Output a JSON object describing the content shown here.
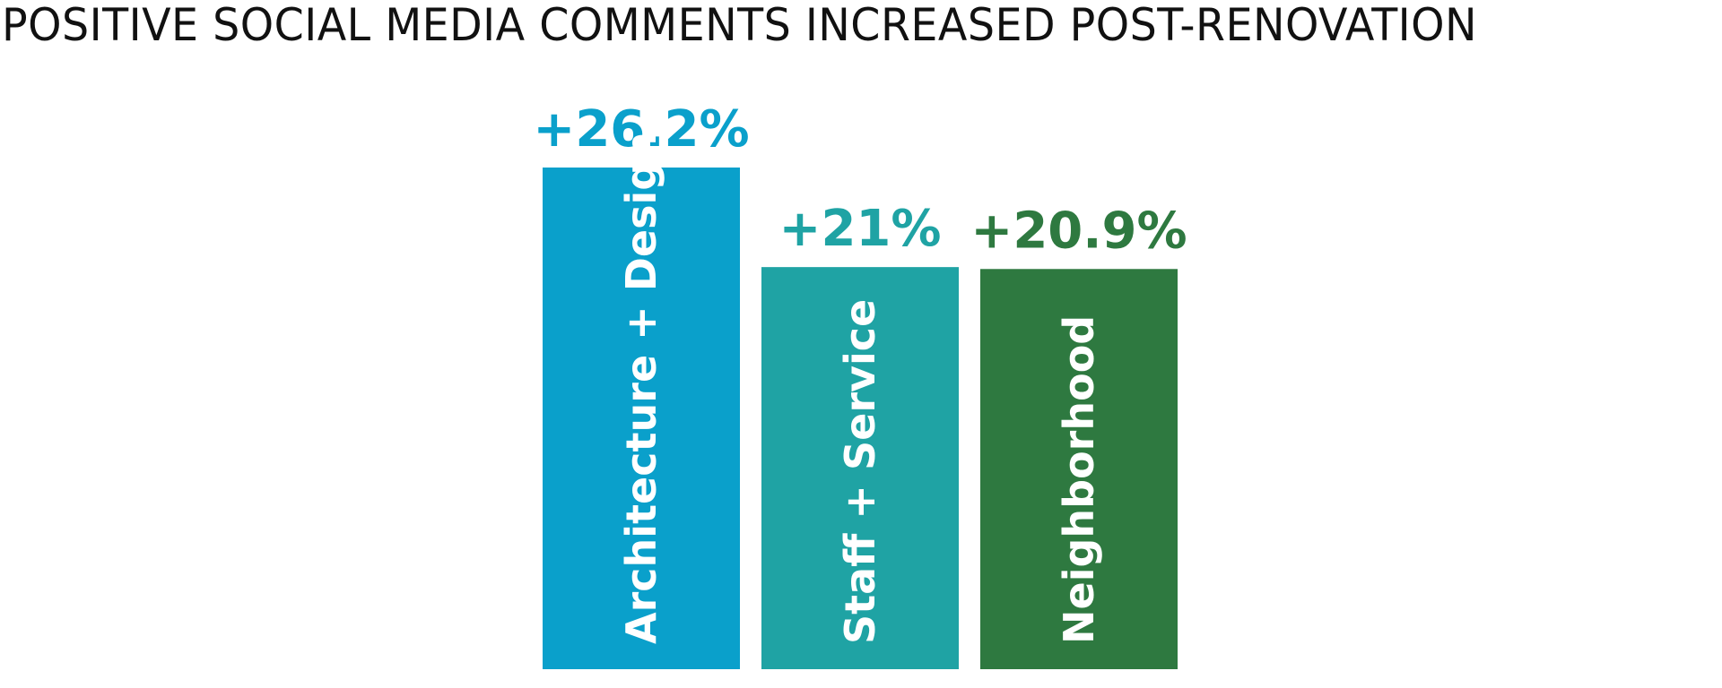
{
  "chart_data": {
    "type": "bar",
    "title": "POSITIVE SOCIAL MEDIA COMMENTS INCREASED POST-RENOVATION",
    "xlabel": "",
    "ylabel": "",
    "categories": [
      "Architecture + Design",
      "Staff + Service",
      "Neighborhood"
    ],
    "values": [
      26.2,
      21,
      20.9
    ],
    "value_labels": [
      "+26.2%",
      "+21%",
      "+20.9%"
    ],
    "colors": [
      "#0aa0cb",
      "#1fa3a4",
      "#2e7940"
    ],
    "ylim": [
      0,
      26.2
    ],
    "grid": false,
    "legend": "none"
  }
}
